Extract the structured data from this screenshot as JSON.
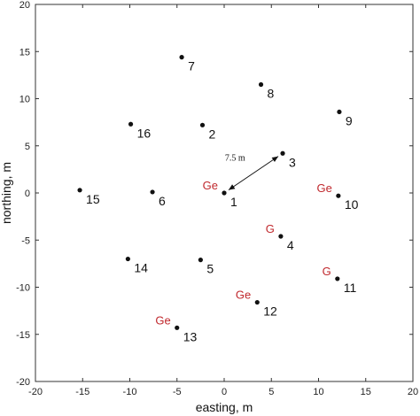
{
  "chart_data": {
    "type": "scatter",
    "xlabel": "easting, m",
    "ylabel": "northing, m",
    "xlim": [
      -20,
      20
    ],
    "ylim": [
      -20,
      20
    ],
    "xticks": [
      "-20",
      "-15",
      "-10",
      "-5",
      "0",
      "5",
      "10",
      "15",
      "20"
    ],
    "yticks": [
      "20",
      "15",
      "10",
      "5",
      "0",
      "-5",
      "-10",
      "-15",
      "-20"
    ],
    "grid": false,
    "tag_color": "#c0282d",
    "points": [
      {
        "label": "1",
        "x": 0.0,
        "y": 0.0,
        "tag": "Ge"
      },
      {
        "label": "2",
        "x": -2.3,
        "y": 7.2,
        "tag": ""
      },
      {
        "label": "3",
        "x": 6.2,
        "y": 4.2,
        "tag": ""
      },
      {
        "label": "4",
        "x": 6.0,
        "y": -4.6,
        "tag": "G"
      },
      {
        "label": "5",
        "x": -2.5,
        "y": -7.1,
        "tag": ""
      },
      {
        "label": "6",
        "x": -7.6,
        "y": 0.1,
        "tag": ""
      },
      {
        "label": "7",
        "x": -4.5,
        "y": 14.4,
        "tag": ""
      },
      {
        "label": "8",
        "x": 3.9,
        "y": 11.5,
        "tag": ""
      },
      {
        "label": "9",
        "x": 12.2,
        "y": 8.6,
        "tag": ""
      },
      {
        "label": "10",
        "x": 12.1,
        "y": -0.3,
        "tag": "Ge"
      },
      {
        "label": "11",
        "x": 12.0,
        "y": -9.1,
        "tag": "G"
      },
      {
        "label": "12",
        "x": 3.5,
        "y": -11.6,
        "tag": "Ge"
      },
      {
        "label": "13",
        "x": -5.0,
        "y": -14.3,
        "tag": "Ge"
      },
      {
        "label": "14",
        "x": -10.2,
        "y": -7.0,
        "tag": ""
      },
      {
        "label": "15",
        "x": -15.3,
        "y": 0.3,
        "tag": ""
      },
      {
        "label": "16",
        "x": -9.9,
        "y": 7.3,
        "tag": ""
      }
    ],
    "annotations": [
      {
        "text": "7.5 m",
        "from": [
          0.0,
          0.0
        ],
        "to": [
          6.2,
          4.2
        ],
        "arrow": "both"
      }
    ]
  }
}
